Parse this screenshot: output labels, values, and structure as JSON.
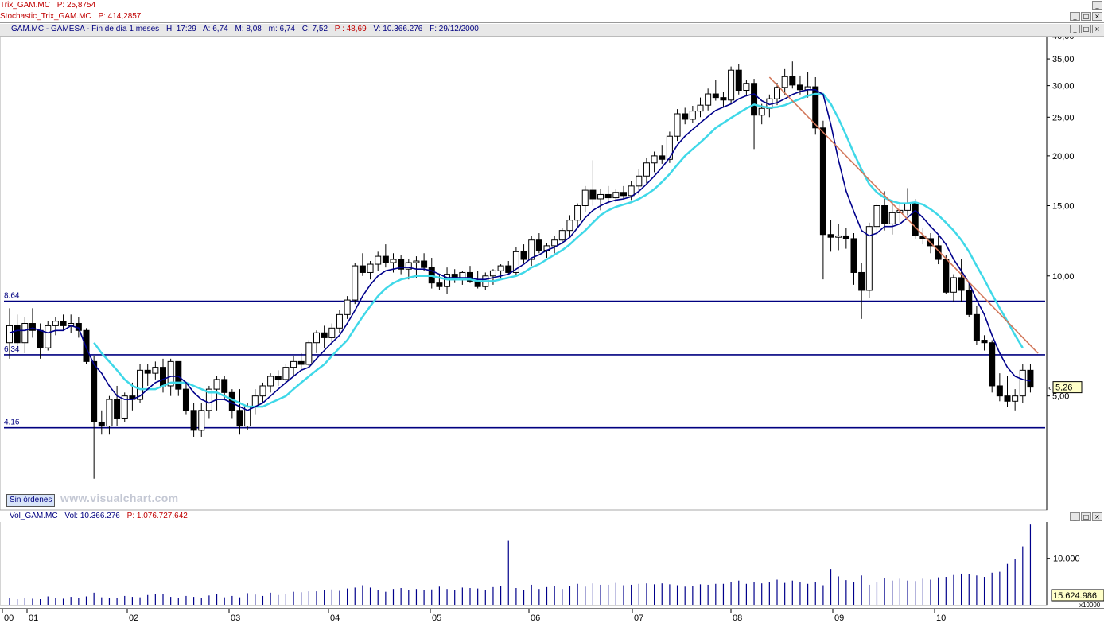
{
  "studies": {
    "trix": {
      "name": "Trix_GAM.MC",
      "value_label": "P: 25,8754"
    },
    "stoch": {
      "name": "Stochastic_Trix_GAM.MC",
      "value_label": "P: 414,2857"
    }
  },
  "price_header": {
    "symbol": "GAM.MC - GAMESA - Fin de día 1 meses",
    "h": "H: 17:29",
    "a": "A: 6,74",
    "max": "M: 8,08",
    "m": "m: 6,74",
    "c": "C: 7,52",
    "p": "P : 48,69",
    "v": "V: 10.366.276",
    "f": "F: 29/12/2000"
  },
  "volume_header": {
    "name": "Vol_GAM.MC",
    "vol": "Vol: 10.366.276",
    "p": "P: 1.076.727.642"
  },
  "status_button": "Sin órdenes",
  "watermark": "www.visualchart.com",
  "window_buttons": {
    "minimize": "_",
    "maximize": "□",
    "close": "×"
  },
  "colors": {
    "bull": "#ffffff",
    "bear": "#000000",
    "ma_fast": "#00008b",
    "ma_slow": "#3fd8e8",
    "hline": "#000080",
    "trend": "#d2775a",
    "volume": "#00008b"
  },
  "chart_data": {
    "type": "candlestick",
    "scale": "log",
    "ylim": [
      2.6,
      40
    ],
    "y_ticks": [
      "40,00",
      "35,00",
      "30,00",
      "25,00",
      "20,00",
      "15,00",
      "10,00",
      "5,00"
    ],
    "y_tick_values": [
      40,
      35,
      30,
      25,
      20,
      15,
      10,
      5
    ],
    "x_labels": [
      "00",
      "01",
      "02",
      "03",
      "04",
      "05",
      "06",
      "07",
      "08",
      "09",
      "10"
    ],
    "hlines": [
      {
        "label": "8.64",
        "value": 8.64
      },
      {
        "label": "6.34",
        "value": 6.34
      },
      {
        "label": "4.16",
        "value": 4.16
      }
    ],
    "last_price_label": "5,26",
    "ohlc": [
      [
        6.8,
        8.3,
        6.2,
        7.5
      ],
      [
        7.5,
        8.0,
        6.4,
        6.8
      ],
      [
        6.8,
        7.9,
        6.4,
        7.6
      ],
      [
        7.6,
        8.3,
        7.0,
        7.3
      ],
      [
        7.3,
        7.6,
        6.2,
        6.6
      ],
      [
        6.6,
        7.7,
        6.5,
        7.5
      ],
      [
        7.5,
        7.9,
        7.1,
        7.7
      ],
      [
        7.7,
        8.0,
        7.3,
        7.5
      ],
      [
        7.5,
        8.0,
        7.2,
        7.6
      ],
      [
        7.6,
        7.9,
        7.0,
        7.3
      ],
      [
        7.3,
        7.4,
        6.0,
        6.1
      ],
      [
        6.1,
        6.3,
        3.1,
        4.3
      ],
      [
        4.3,
        4.6,
        4.0,
        4.2
      ],
      [
        4.2,
        5.0,
        4.0,
        4.9
      ],
      [
        4.9,
        5.3,
        4.2,
        4.4
      ],
      [
        4.4,
        5.1,
        4.3,
        5.0
      ],
      [
        5.0,
        5.4,
        4.6,
        4.9
      ],
      [
        4.9,
        6.0,
        4.8,
        5.8
      ],
      [
        5.8,
        6.0,
        5.3,
        5.7
      ],
      [
        5.7,
        6.1,
        5.5,
        5.9
      ],
      [
        5.9,
        6.2,
        5.1,
        5.3
      ],
      [
        5.3,
        6.2,
        5.0,
        6.1
      ],
      [
        6.1,
        6.1,
        5.0,
        5.2
      ],
      [
        5.2,
        5.4,
        4.5,
        4.6
      ],
      [
        4.6,
        4.8,
        3.95,
        4.1
      ],
      [
        4.1,
        4.8,
        3.95,
        4.6
      ],
      [
        4.6,
        5.3,
        4.4,
        5.2
      ],
      [
        5.2,
        5.6,
        4.6,
        5.5
      ],
      [
        5.5,
        5.6,
        4.9,
        5.1
      ],
      [
        5.1,
        5.2,
        4.4,
        4.6
      ],
      [
        4.6,
        5.2,
        4.0,
        4.2
      ],
      [
        4.2,
        4.8,
        4.1,
        4.7
      ],
      [
        4.7,
        5.2,
        4.5,
        5.0
      ],
      [
        5.0,
        5.4,
        4.8,
        5.3
      ],
      [
        5.3,
        5.7,
        5.1,
        5.6
      ],
      [
        5.6,
        5.8,
        5.3,
        5.5
      ],
      [
        5.5,
        6.0,
        5.4,
        5.9
      ],
      [
        5.9,
        6.3,
        5.6,
        6.1
      ],
      [
        6.1,
        6.4,
        5.8,
        6.0
      ],
      [
        6.0,
        6.9,
        5.9,
        6.8
      ],
      [
        6.8,
        7.3,
        6.4,
        7.2
      ],
      [
        7.2,
        7.5,
        6.6,
        7.0
      ],
      [
        7.0,
        7.6,
        6.8,
        7.4
      ],
      [
        7.4,
        8.2,
        7.2,
        8.0
      ],
      [
        8.0,
        8.9,
        7.8,
        8.7
      ],
      [
        8.7,
        10.8,
        8.5,
        10.6
      ],
      [
        10.6,
        11.4,
        10.0,
        10.2
      ],
      [
        10.2,
        10.9,
        9.8,
        10.7
      ],
      [
        10.7,
        11.5,
        10.3,
        11.2
      ],
      [
        11.2,
        12.0,
        10.5,
        10.8
      ],
      [
        10.8,
        11.4,
        10.2,
        11.0
      ],
      [
        11.0,
        11.3,
        10.1,
        10.4
      ],
      [
        10.4,
        11.0,
        9.8,
        10.8
      ],
      [
        10.8,
        11.2,
        9.9,
        10.9
      ],
      [
        10.9,
        11.4,
        10.3,
        10.5
      ],
      [
        10.5,
        11.1,
        9.3,
        9.6
      ],
      [
        9.6,
        10.1,
        9.2,
        9.4
      ],
      [
        9.4,
        10.5,
        9.0,
        10.1
      ],
      [
        10.1,
        10.4,
        9.6,
        9.8
      ],
      [
        9.8,
        10.3,
        9.5,
        10.2
      ],
      [
        10.2,
        10.6,
        9.6,
        9.7
      ],
      [
        9.7,
        10.3,
        9.3,
        9.4
      ],
      [
        9.4,
        10.2,
        9.2,
        10.0
      ],
      [
        10.0,
        10.4,
        9.5,
        10.3
      ],
      [
        10.3,
        10.7,
        9.8,
        10.6
      ],
      [
        10.6,
        10.9,
        10.1,
        10.2
      ],
      [
        10.2,
        11.8,
        10.0,
        11.5
      ],
      [
        11.5,
        12.0,
        10.8,
        11.0
      ],
      [
        11.0,
        12.6,
        10.6,
        12.3
      ],
      [
        12.3,
        12.8,
        11.4,
        11.6
      ],
      [
        11.6,
        12.1,
        11.1,
        11.9
      ],
      [
        11.9,
        12.6,
        11.4,
        12.3
      ],
      [
        12.3,
        13.2,
        12.0,
        13.0
      ],
      [
        13.0,
        14.2,
        12.5,
        13.8
      ],
      [
        13.8,
        15.2,
        13.2,
        15.0
      ],
      [
        15.0,
        16.8,
        14.5,
        16.4
      ],
      [
        16.4,
        19.5,
        15.0,
        15.6
      ],
      [
        15.6,
        16.5,
        14.6,
        16.0
      ],
      [
        16.0,
        16.8,
        15.2,
        15.7
      ],
      [
        15.7,
        16.5,
        15.3,
        16.2
      ],
      [
        16.2,
        16.8,
        15.6,
        15.9
      ],
      [
        15.9,
        17.3,
        15.5,
        16.8
      ],
      [
        16.8,
        18.5,
        16.0,
        17.8
      ],
      [
        17.8,
        19.8,
        17.0,
        19.2
      ],
      [
        19.2,
        20.5,
        18.2,
        20.0
      ],
      [
        20.0,
        21.3,
        19.1,
        19.6
      ],
      [
        19.6,
        23.0,
        19.2,
        22.4
      ],
      [
        22.4,
        26.2,
        21.8,
        25.5
      ],
      [
        25.5,
        26.4,
        24.0,
        24.7
      ],
      [
        24.7,
        26.7,
        24.2,
        25.9
      ],
      [
        25.9,
        28.0,
        25.0,
        26.8
      ],
      [
        26.8,
        29.5,
        26.0,
        28.6
      ],
      [
        28.6,
        31.0,
        27.5,
        28.0
      ],
      [
        28.0,
        29.0,
        26.5,
        27.6
      ],
      [
        27.6,
        33.5,
        27.0,
        32.8
      ],
      [
        32.8,
        34.0,
        28.5,
        29.2
      ],
      [
        29.2,
        31.0,
        28.2,
        30.4
      ],
      [
        30.4,
        31.2,
        20.8,
        25.3
      ],
      [
        25.3,
        27.0,
        24.0,
        26.3
      ],
      [
        26.3,
        28.5,
        25.0,
        27.8
      ],
      [
        27.8,
        30.5,
        26.8,
        29.7
      ],
      [
        29.7,
        33.0,
        28.5,
        31.6
      ],
      [
        31.6,
        34.5,
        29.5,
        30.1
      ],
      [
        30.1,
        31.8,
        28.5,
        29.3
      ],
      [
        29.3,
        32.4,
        28.0,
        29.8
      ],
      [
        29.8,
        31.5,
        22.6,
        23.5
      ],
      [
        23.5,
        24.5,
        9.8,
        12.7
      ],
      [
        12.7,
        13.8,
        11.5,
        12.5
      ],
      [
        12.5,
        13.5,
        11.6,
        12.6
      ],
      [
        12.6,
        13.2,
        11.7,
        12.4
      ],
      [
        12.4,
        12.8,
        9.5,
        10.2
      ],
      [
        10.2,
        10.8,
        7.8,
        9.2
      ],
      [
        9.2,
        13.6,
        8.8,
        13.3
      ],
      [
        13.3,
        15.2,
        12.6,
        15.0
      ],
      [
        15.0,
        16.3,
        13.0,
        13.5
      ],
      [
        13.5,
        15.5,
        12.7,
        14.4
      ],
      [
        14.4,
        15.3,
        13.6,
        14.6
      ],
      [
        14.6,
        16.6,
        14.2,
        15.2
      ],
      [
        15.2,
        15.6,
        12.4,
        12.6
      ],
      [
        12.6,
        13.2,
        12.0,
        12.4
      ],
      [
        12.4,
        12.8,
        11.4,
        11.9
      ],
      [
        11.9,
        12.6,
        10.7,
        11.0
      ],
      [
        11.0,
        11.3,
        9.0,
        9.1
      ],
      [
        9.1,
        10.1,
        8.6,
        9.9
      ],
      [
        9.9,
        11.0,
        8.6,
        9.2
      ],
      [
        9.2,
        9.6,
        7.9,
        8.0
      ],
      [
        8.0,
        8.4,
        6.7,
        6.9
      ],
      [
        6.9,
        7.1,
        6.5,
        6.8
      ],
      [
        6.8,
        6.9,
        5.1,
        5.3
      ],
      [
        5.3,
        5.7,
        4.85,
        5.0
      ],
      [
        5.0,
        5.6,
        4.7,
        4.85
      ],
      [
        4.85,
        5.2,
        4.6,
        5.0
      ],
      [
        5.0,
        6.0,
        4.8,
        5.8
      ],
      [
        5.8,
        6.0,
        5.1,
        5.26
      ]
    ],
    "ma_fast": [
      7.2,
      7.3,
      7.3,
      7.4,
      7.3,
      7.2,
      7.3,
      7.3,
      7.5,
      7.4,
      6.6,
      6.0,
      5.7,
      5.3,
      5.0,
      4.9,
      4.9,
      5.0,
      5.2,
      5.4,
      5.5,
      5.6,
      5.6,
      5.4,
      5.1,
      4.9,
      4.8,
      4.9,
      4.9,
      4.8,
      4.7,
      4.6,
      4.7,
      4.8,
      5.0,
      5.2,
      5.4,
      5.6,
      5.8,
      5.9,
      6.2,
      6.5,
      6.8,
      7.1,
      7.6,
      8.2,
      8.9,
      9.5,
      10.0,
      10.3,
      10.4,
      10.5,
      10.5,
      10.4,
      10.4,
      10.3,
      10.1,
      9.9,
      9.9,
      9.9,
      9.9,
      9.8,
      9.8,
      9.9,
      10.0,
      10.1,
      10.4,
      10.7,
      11.1,
      11.3,
      11.6,
      11.8,
      12.1,
      12.5,
      13.2,
      14.0,
      14.6,
      15.0,
      15.3,
      15.5,
      15.6,
      15.8,
      16.3,
      17.0,
      17.8,
      18.7,
      19.8,
      21.3,
      22.4,
      23.3,
      24.2,
      25.1,
      26.0,
      26.5,
      27.0,
      27.8,
      28.3,
      28.6,
      27.5,
      26.9,
      27.2,
      27.8,
      28.5,
      29.0,
      29.3,
      29.3,
      28.5,
      24.0,
      19.5,
      16.3,
      14.5,
      13.0,
      12.6,
      12.8,
      13.3,
      13.3,
      13.5,
      14.0,
      14.6,
      14.0,
      13.3,
      12.7,
      12.0,
      11.0,
      10.3,
      9.6,
      8.7,
      8.0,
      7.1,
      6.4,
      5.9,
      5.6,
      5.5,
      5.45
    ],
    "ma_slow": [
      null,
      null,
      null,
      null,
      null,
      null,
      null,
      null,
      null,
      null,
      null,
      6.8,
      6.4,
      6.1,
      5.8,
      5.5,
      5.3,
      5.2,
      5.2,
      5.2,
      5.3,
      5.4,
      5.4,
      5.4,
      5.3,
      5.2,
      5.1,
      5.1,
      5.0,
      4.9,
      4.8,
      4.7,
      4.7,
      4.7,
      4.8,
      4.9,
      5.0,
      5.2,
      5.4,
      5.6,
      5.8,
      6.0,
      6.3,
      6.6,
      6.9,
      7.4,
      7.9,
      8.4,
      8.9,
      9.3,
      9.6,
      9.8,
      9.9,
      10.0,
      10.0,
      10.0,
      9.9,
      9.8,
      9.8,
      9.8,
      9.8,
      9.7,
      9.7,
      9.7,
      9.8,
      9.9,
      10.0,
      10.2,
      10.5,
      10.7,
      11.0,
      11.3,
      11.6,
      12.0,
      12.5,
      13.0,
      13.6,
      14.2,
      14.6,
      14.9,
      15.1,
      15.3,
      15.6,
      16.0,
      16.5,
      17.2,
      18.0,
      19.0,
      20.0,
      20.8,
      21.6,
      22.5,
      23.5,
      24.2,
      24.9,
      25.6,
      26.3,
      26.9,
      26.6,
      26.4,
      26.5,
      26.8,
      27.3,
      27.8,
      28.3,
      28.6,
      28.6,
      27.0,
      24.8,
      22.5,
      20.3,
      18.5,
      17.0,
      16.2,
      15.7,
      15.4,
      15.2,
      15.2,
      15.3,
      15.1,
      14.7,
      14.2,
      13.6,
      13.0,
      12.3,
      11.5,
      10.6,
      9.8,
      9.0,
      8.3,
      7.7,
      7.1,
      6.6,
      null
    ],
    "trend_line": {
      "from": [
        99,
        31.5
      ],
      "to": [
        134,
        6.4
      ]
    },
    "volume": {
      "y_tick": "10.000",
      "y_tick_value": 10000,
      "y_sub_label": "x10000",
      "last_label": "15.624.986",
      "values": [
        1500,
        1200,
        1400,
        1300,
        1200,
        1800,
        1400,
        1300,
        1700,
        1500,
        1800,
        2600,
        1600,
        1400,
        1500,
        1900,
        1700,
        1600,
        2100,
        2400,
        2300,
        1700,
        1500,
        1900,
        1700,
        1500,
        2000,
        2300,
        1600,
        1900,
        1600,
        2500,
        2200,
        1900,
        2600,
        2100,
        2300,
        2800,
        2700,
        2900,
        2900,
        3100,
        3300,
        3000,
        3500,
        3700,
        4200,
        3700,
        3200,
        2800,
        3400,
        3600,
        3200,
        3400,
        3100,
        3300,
        3900,
        3400,
        3100,
        3700,
        3600,
        3500,
        3200,
        3800,
        4000,
        13800,
        3600,
        3200,
        4300,
        3400,
        3800,
        4000,
        3400,
        4100,
        4500,
        3900,
        4600,
        4300,
        4300,
        4700,
        4200,
        4300,
        4500,
        4600,
        4400,
        4600,
        4400,
        4200,
        3900,
        4100,
        4400,
        4300,
        4500,
        4500,
        4900,
        5200,
        4500,
        4800,
        4600,
        4800,
        5400,
        4700,
        5200,
        4800,
        4500,
        4900,
        4200,
        7700,
        6100,
        5300,
        4800,
        6300,
        4300,
        4800,
        5800,
        5200,
        5600,
        5200,
        5100,
        5600,
        5400,
        5900,
        6000,
        6400,
        6700,
        6600,
        6300,
        6000,
        6900,
        7100,
        8800,
        9800,
        12600,
        17300
      ]
    }
  }
}
